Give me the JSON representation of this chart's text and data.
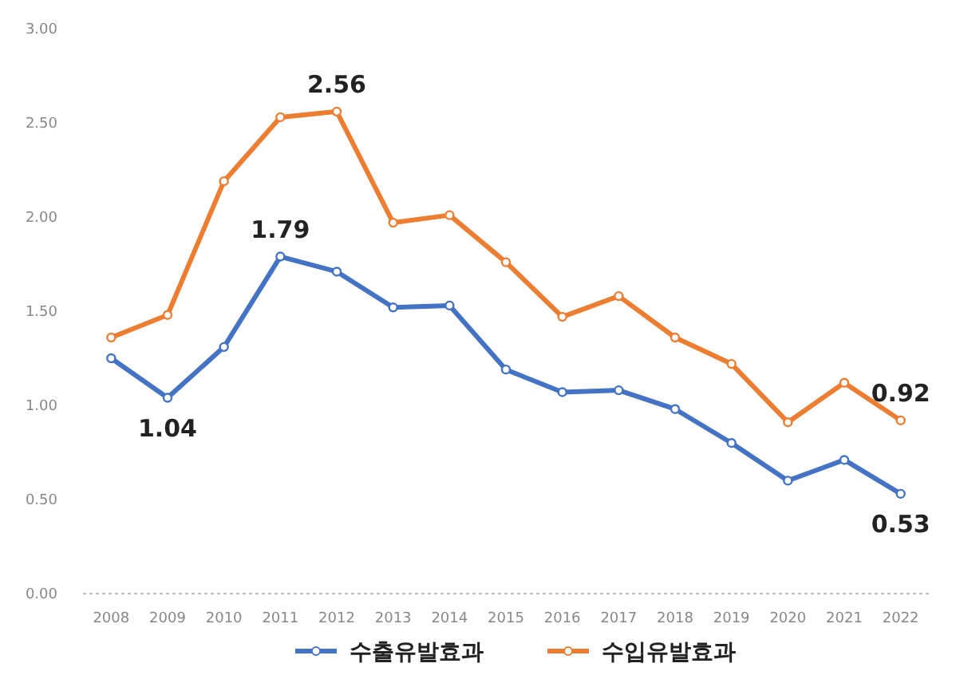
{
  "chart_data": {
    "type": "line",
    "categories": [
      "2008",
      "2009",
      "2010",
      "2011",
      "2012",
      "2013",
      "2014",
      "2015",
      "2016",
      "2017",
      "2018",
      "2019",
      "2020",
      "2021",
      "2022"
    ],
    "series": [
      {
        "name": "수출유발효과",
        "color": "#4472c4",
        "values": [
          1.25,
          1.04,
          1.31,
          1.79,
          1.71,
          1.52,
          1.53,
          1.19,
          1.07,
          1.08,
          0.98,
          0.8,
          0.6,
          0.71,
          0.53
        ],
        "value_labels": [
          null,
          "1.04",
          null,
          "1.79",
          null,
          null,
          null,
          null,
          null,
          null,
          null,
          null,
          null,
          null,
          "0.53"
        ]
      },
      {
        "name": "수입유발효과",
        "color": "#ed7d31",
        "values": [
          1.36,
          1.48,
          2.19,
          2.53,
          2.56,
          1.97,
          2.01,
          1.76,
          1.47,
          1.58,
          1.36,
          1.22,
          0.91,
          1.12,
          0.92
        ],
        "value_labels": [
          null,
          null,
          null,
          null,
          "2.56",
          null,
          null,
          null,
          null,
          null,
          null,
          null,
          null,
          null,
          "0.92"
        ]
      }
    ],
    "ylim": [
      0,
      3
    ],
    "yticks": [
      {
        "value": 0,
        "label": "0.00"
      },
      {
        "value": 0.5,
        "label": "0.50"
      },
      {
        "value": 1,
        "label": "1.00"
      },
      {
        "value": 1.5,
        "label": "1.50"
      },
      {
        "value": 2,
        "label": "2.00"
      },
      {
        "value": 2.5,
        "label": "2.50"
      },
      {
        "value": 3,
        "label": "3.00"
      }
    ],
    "legend": "bottom",
    "marker": "circle",
    "line_style": "solid"
  }
}
